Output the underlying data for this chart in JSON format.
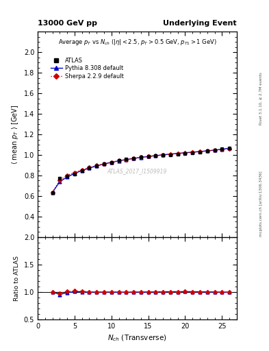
{
  "title_left": "13000 GeV pp",
  "title_right": "Underlying Event",
  "right_label": "mcplots.cern.ch [arXiv:1306.3436]",
  "right_label2": "Rivet 3.1.10, ≥ 2.7M events",
  "plot_title": "Average $p_T$ vs $N_{ch}$ ($|\\eta| < 2.5$, $p_T > 0.5$ GeV, $p_{T1} > 1$ GeV)",
  "watermark": "ATLAS_2017_I1509919",
  "xlabel": "$N_{ch}$ (Transverse)",
  "ylabel_main": "$\\langle$ mean $p_T$ $\\rangle$ [GeV]",
  "ylabel_ratio": "Ratio to ATLAS",
  "ylim_main": [
    0.2,
    2.2
  ],
  "ylim_ratio": [
    0.5,
    2.0
  ],
  "yticks_main": [
    0.4,
    0.6,
    0.8,
    1.0,
    1.2,
    1.4,
    1.6,
    1.8,
    2.0
  ],
  "yticks_ratio": [
    0.5,
    1.0,
    1.5,
    2.0
  ],
  "xlim": [
    0,
    27
  ],
  "xticks": [
    0,
    5,
    10,
    15,
    20,
    25
  ],
  "atlas_x": [
    2,
    3,
    4,
    5,
    6,
    7,
    8,
    9,
    10,
    11,
    12,
    13,
    14,
    15,
    16,
    17,
    18,
    19,
    20,
    21,
    22,
    23,
    24,
    25,
    26
  ],
  "atlas_y": [
    0.635,
    0.775,
    0.795,
    0.815,
    0.845,
    0.875,
    0.895,
    0.915,
    0.93,
    0.945,
    0.96,
    0.968,
    0.978,
    0.985,
    0.992,
    0.998,
    1.003,
    1.01,
    1.015,
    1.022,
    1.03,
    1.038,
    1.048,
    1.058,
    1.068
  ],
  "atlas_yerr": [
    0.012,
    0.01,
    0.008,
    0.006,
    0.005,
    0.005,
    0.004,
    0.004,
    0.003,
    0.003,
    0.003,
    0.003,
    0.003,
    0.003,
    0.003,
    0.003,
    0.003,
    0.003,
    0.003,
    0.003,
    0.004,
    0.004,
    0.005,
    0.006,
    0.008
  ],
  "pythia_x": [
    2,
    3,
    4,
    5,
    6,
    7,
    8,
    9,
    10,
    11,
    12,
    13,
    14,
    15,
    16,
    17,
    18,
    19,
    20,
    21,
    22,
    23,
    24,
    25,
    26
  ],
  "pythia_y": [
    0.635,
    0.74,
    0.785,
    0.82,
    0.848,
    0.872,
    0.893,
    0.912,
    0.928,
    0.942,
    0.955,
    0.966,
    0.976,
    0.985,
    0.993,
    1.001,
    1.008,
    1.015,
    1.021,
    1.027,
    1.033,
    1.04,
    1.047,
    1.055,
    1.065
  ],
  "sherpa_x": [
    2,
    3,
    4,
    5,
    6,
    7,
    8,
    9,
    10,
    11,
    12,
    13,
    14,
    15,
    16,
    17,
    18,
    19,
    20,
    21,
    22,
    23,
    24,
    25,
    26
  ],
  "sherpa_y": [
    0.635,
    0.755,
    0.8,
    0.83,
    0.855,
    0.878,
    0.897,
    0.915,
    0.93,
    0.944,
    0.956,
    0.967,
    0.977,
    0.986,
    0.994,
    1.001,
    1.008,
    1.015,
    1.021,
    1.027,
    1.033,
    1.04,
    1.047,
    1.055,
    1.063
  ],
  "pythia_ratio": [
    1.0,
    0.955,
    0.987,
    1.006,
    1.004,
    0.997,
    0.998,
    0.997,
    0.998,
    0.997,
    0.995,
    0.998,
    0.998,
    1.0,
    1.001,
    1.003,
    1.005,
    1.005,
    1.006,
    1.005,
    1.003,
    1.002,
    0.999,
    0.997,
    0.997
  ],
  "sherpa_ratio": [
    1.0,
    0.974,
    1.006,
    1.018,
    1.012,
    1.003,
    1.002,
    1.0,
    1.0,
    0.999,
    0.996,
    0.999,
    0.999,
    1.001,
    1.002,
    1.003,
    1.005,
    1.005,
    1.006,
    1.005,
    1.003,
    1.002,
    0.999,
    0.997,
    0.995
  ],
  "atlas_color": "#000000",
  "pythia_color": "#0000cc",
  "sherpa_color": "#cc0000",
  "pythia_band_color": "#aaaaff",
  "sherpa_band_color": "#ffaaaa",
  "ratio_band_color": "#aaff88"
}
